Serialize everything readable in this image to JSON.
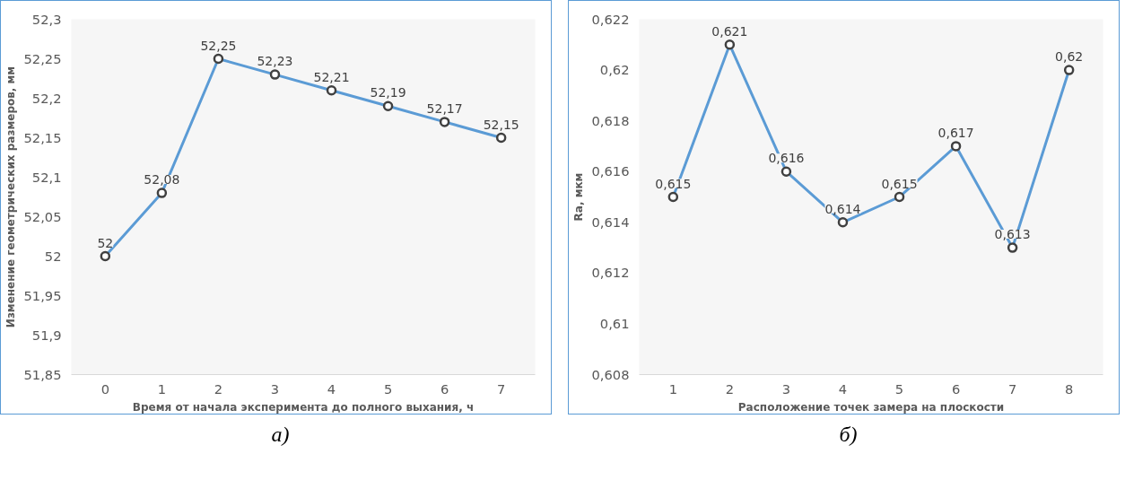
{
  "chart_data": [
    {
      "type": "line",
      "categories": [
        "0",
        "1",
        "2",
        "3",
        "4",
        "5",
        "6",
        "7"
      ],
      "xlabel": "Время от начала эксперимента до полного выхания, ч",
      "ylabel": "Изменение геометрических размеров, мм",
      "series": [
        {
          "color": "#5b9bd5",
          "values": [
            52,
            52.08,
            52.25,
            52.23,
            52.21,
            52.19,
            52.17,
            52.15
          ],
          "value_labels": [
            "52",
            "52,08",
            "52,25",
            "52,23",
            "52,21",
            "52,19",
            "52,17",
            "52,15"
          ]
        }
      ],
      "ylim": [
        51.85,
        52.3
      ],
      "yticks": [
        {
          "value": 51.85,
          "label": "51,85"
        },
        {
          "value": 51.9,
          "label": "51,9"
        },
        {
          "value": 51.95,
          "label": "51,95"
        },
        {
          "value": 52,
          "label": "52"
        },
        {
          "value": 52.05,
          "label": "52,05"
        },
        {
          "value": 52.1,
          "label": "52,1"
        },
        {
          "value": 52.15,
          "label": "52,15"
        },
        {
          "value": 52.2,
          "label": "52,2"
        },
        {
          "value": 52.25,
          "label": "52,25"
        },
        {
          "value": 52.3,
          "label": "52,3"
        }
      ],
      "marker": "circle",
      "annotations": [
        "а)"
      ]
    },
    {
      "type": "line",
      "categories": [
        "1",
        "2",
        "3",
        "4",
        "5",
        "6",
        "7",
        "8"
      ],
      "xlabel": "Расположение точек замера на плоскости",
      "ylabel": "Ra, мкм",
      "series": [
        {
          "color": "#5b9bd5",
          "values": [
            0.615,
            0.621,
            0.616,
            0.614,
            0.615,
            0.617,
            0.613,
            0.62
          ],
          "value_labels": [
            "0,615",
            "0,621",
            "0,616",
            "0,614",
            "0,615",
            "0,617",
            "0,613",
            "0,62"
          ]
        }
      ],
      "ylim": [
        0.608,
        0.622
      ],
      "yticks": [
        {
          "value": 0.608,
          "label": "0,608"
        },
        {
          "value": 0.61,
          "label": "0,61"
        },
        {
          "value": 0.612,
          "label": "0,612"
        },
        {
          "value": 0.614,
          "label": "0,614"
        },
        {
          "value": 0.616,
          "label": "0,616"
        },
        {
          "value": 0.618,
          "label": "0,618"
        },
        {
          "value": 0.62,
          "label": "0,62"
        },
        {
          "value": 0.622,
          "label": "0,622"
        }
      ],
      "marker": "circle",
      "annotations": [
        "б)"
      ]
    }
  ]
}
